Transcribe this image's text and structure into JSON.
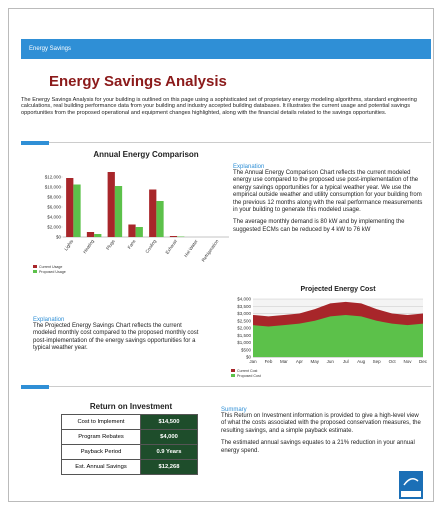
{
  "header": {
    "label": "Energy Savings"
  },
  "title": "Energy Savings Analysis",
  "intro": "The Energy Savings Analysis for your building is outlined on this page using a sophisticated set of proprietary energy modeling algorithms, standard engineering calculations, real building performance data from your building and industry accepted building databases. It illustrates the current usage and potential savings opportunities from the proposed operational and equipment changes highlighted, along with the financial details related to the savings opportunities.",
  "chart_data": [
    {
      "type": "bar",
      "title": "Annual Energy Comparison",
      "categories": [
        "Lights",
        "Heating",
        "Plugs",
        "Fans",
        "Cooling",
        "Exhaust",
        "Hot Water",
        "Refrigeration"
      ],
      "series": [
        {
          "name": "Current Usage",
          "color": "#a8262a",
          "values": [
            11800,
            1000,
            13000,
            2500,
            9500,
            200,
            0,
            0
          ]
        },
        {
          "name": "Proposed Usage",
          "color": "#5cc14a",
          "values": [
            10500,
            600,
            10200,
            2000,
            7200,
            100,
            0,
            0
          ]
        }
      ],
      "ylim": [
        0,
        14000
      ],
      "yticks": [
        {
          "value": 0,
          "label": "$0"
        },
        {
          "value": 2000,
          "label": "$2,000"
        },
        {
          "value": 4000,
          "label": "$4,000"
        },
        {
          "value": 6000,
          "label": "$6,000"
        },
        {
          "value": 8000,
          "label": "$8,000"
        },
        {
          "value": 10000,
          "label": "$10,000"
        },
        {
          "value": 12000,
          "label": "$12,000"
        }
      ],
      "legend": "bottom-left"
    },
    {
      "type": "area",
      "title": "Projected Energy Cost",
      "categories": [
        "Jan",
        "Feb",
        "Mar",
        "Apr",
        "May",
        "Jun",
        "Jul",
        "Aug",
        "Sep",
        "Oct",
        "Nov",
        "Dec"
      ],
      "series": [
        {
          "name": "Current Cost",
          "color": "#a8262a",
          "values": [
            2900,
            2800,
            2900,
            3000,
            3300,
            3700,
            3800,
            3700,
            3300,
            3000,
            2900,
            3000
          ]
        },
        {
          "name": "Proposed Cost",
          "color": "#5cc14a",
          "values": [
            2200,
            2100,
            2200,
            2300,
            2500,
            2800,
            2900,
            2800,
            2500,
            2300,
            2200,
            2300
          ]
        }
      ],
      "ylim": [
        0,
        4000
      ],
      "yticks": [
        {
          "value": 0,
          "label": "$0"
        },
        {
          "value": 500,
          "label": "$500"
        },
        {
          "value": 1000,
          "label": "$1,000"
        },
        {
          "value": 1500,
          "label": "$1,500"
        },
        {
          "value": 2000,
          "label": "$2,000"
        },
        {
          "value": 2500,
          "label": "$2,500"
        },
        {
          "value": 3000,
          "label": "$3,000"
        },
        {
          "value": 3500,
          "label": "$3,500"
        },
        {
          "value": 4000,
          "label": "$4,000"
        }
      ],
      "grid": true,
      "legend": "bottom-left"
    }
  ],
  "explanation1": {
    "heading": "Explanation",
    "text": "The Annual Energy Comparison Chart reflects the current modeled energy use compared to the proposed use post-implementation of the energy savings opportunities for a typical weather year. We use the empirical outside weather and utility consumption for your building from the previous 12 months along with the real performance measurements in your building to generate this modeled usage.",
    "demand": "The average monthly demand is 80 kW and by implementing the suggested ECMs can be reduced by 4 kW to 76 kW"
  },
  "explanation2": {
    "heading": "Explanation",
    "text": "The Projected Energy Savings Chart reflects the current modeled monthly cost compared to the proposed monthly cost post-implementation of the energy savings opportunities for a typical weather year."
  },
  "roi": {
    "title": "Return on Investment",
    "rows": [
      [
        "Cost to Implement",
        "$14,500"
      ],
      [
        "Program Rebates",
        "$4,000"
      ],
      [
        "Payback Period",
        "0.9 Years"
      ],
      [
        "Est. Annual Savings",
        "$12,268"
      ]
    ]
  },
  "summary": {
    "heading": "Summary",
    "text": "This Return on Investment information is provided to give a high-level view of what the costs associated with the proposed conservation measures, the resulting savings, and a simple payback estimate.",
    "savings": "The estimated annual savings equates to a 21% reduction in your annual energy spend."
  }
}
